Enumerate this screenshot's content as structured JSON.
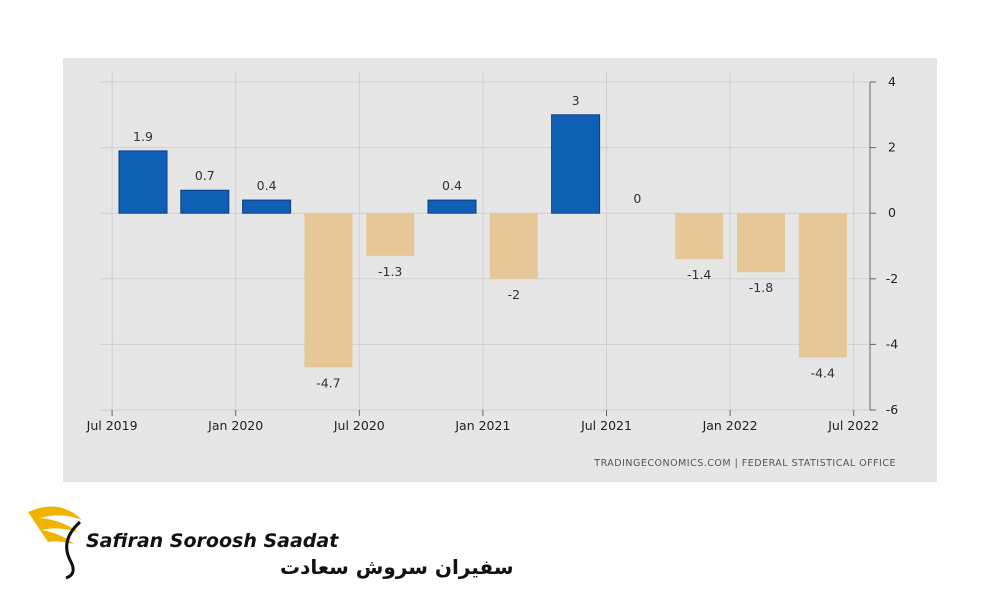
{
  "chart_data": {
    "type": "bar",
    "categories": [
      null,
      null,
      null,
      null,
      null,
      null,
      null,
      null,
      null,
      null,
      null,
      null
    ],
    "values": [
      1.9,
      0.7,
      0.4,
      -4.7,
      -1.3,
      0.4,
      -2,
      3,
      0,
      -1.4,
      -1.8,
      -4.4
    ],
    "xticks": [
      "Jul 2019",
      "Jan 2020",
      "Jul 2020",
      "Jan 2021",
      "Jul 2021",
      "Jan 2022",
      "Jul 2022"
    ],
    "ylim": [
      -6,
      4
    ],
    "yticks": [
      4,
      2,
      0,
      -2,
      -4,
      -6
    ],
    "positive_color": "#0f5fb5",
    "negative_color": "#e6c898",
    "grid": true,
    "source": "TRADINGECONOMICS.COM  |  FEDERAL  STATISTICAL  OFFICE"
  },
  "logo": {
    "name": "Safiran Soroosh Saadat",
    "name_fa": "سفیران سروش سعادت"
  }
}
